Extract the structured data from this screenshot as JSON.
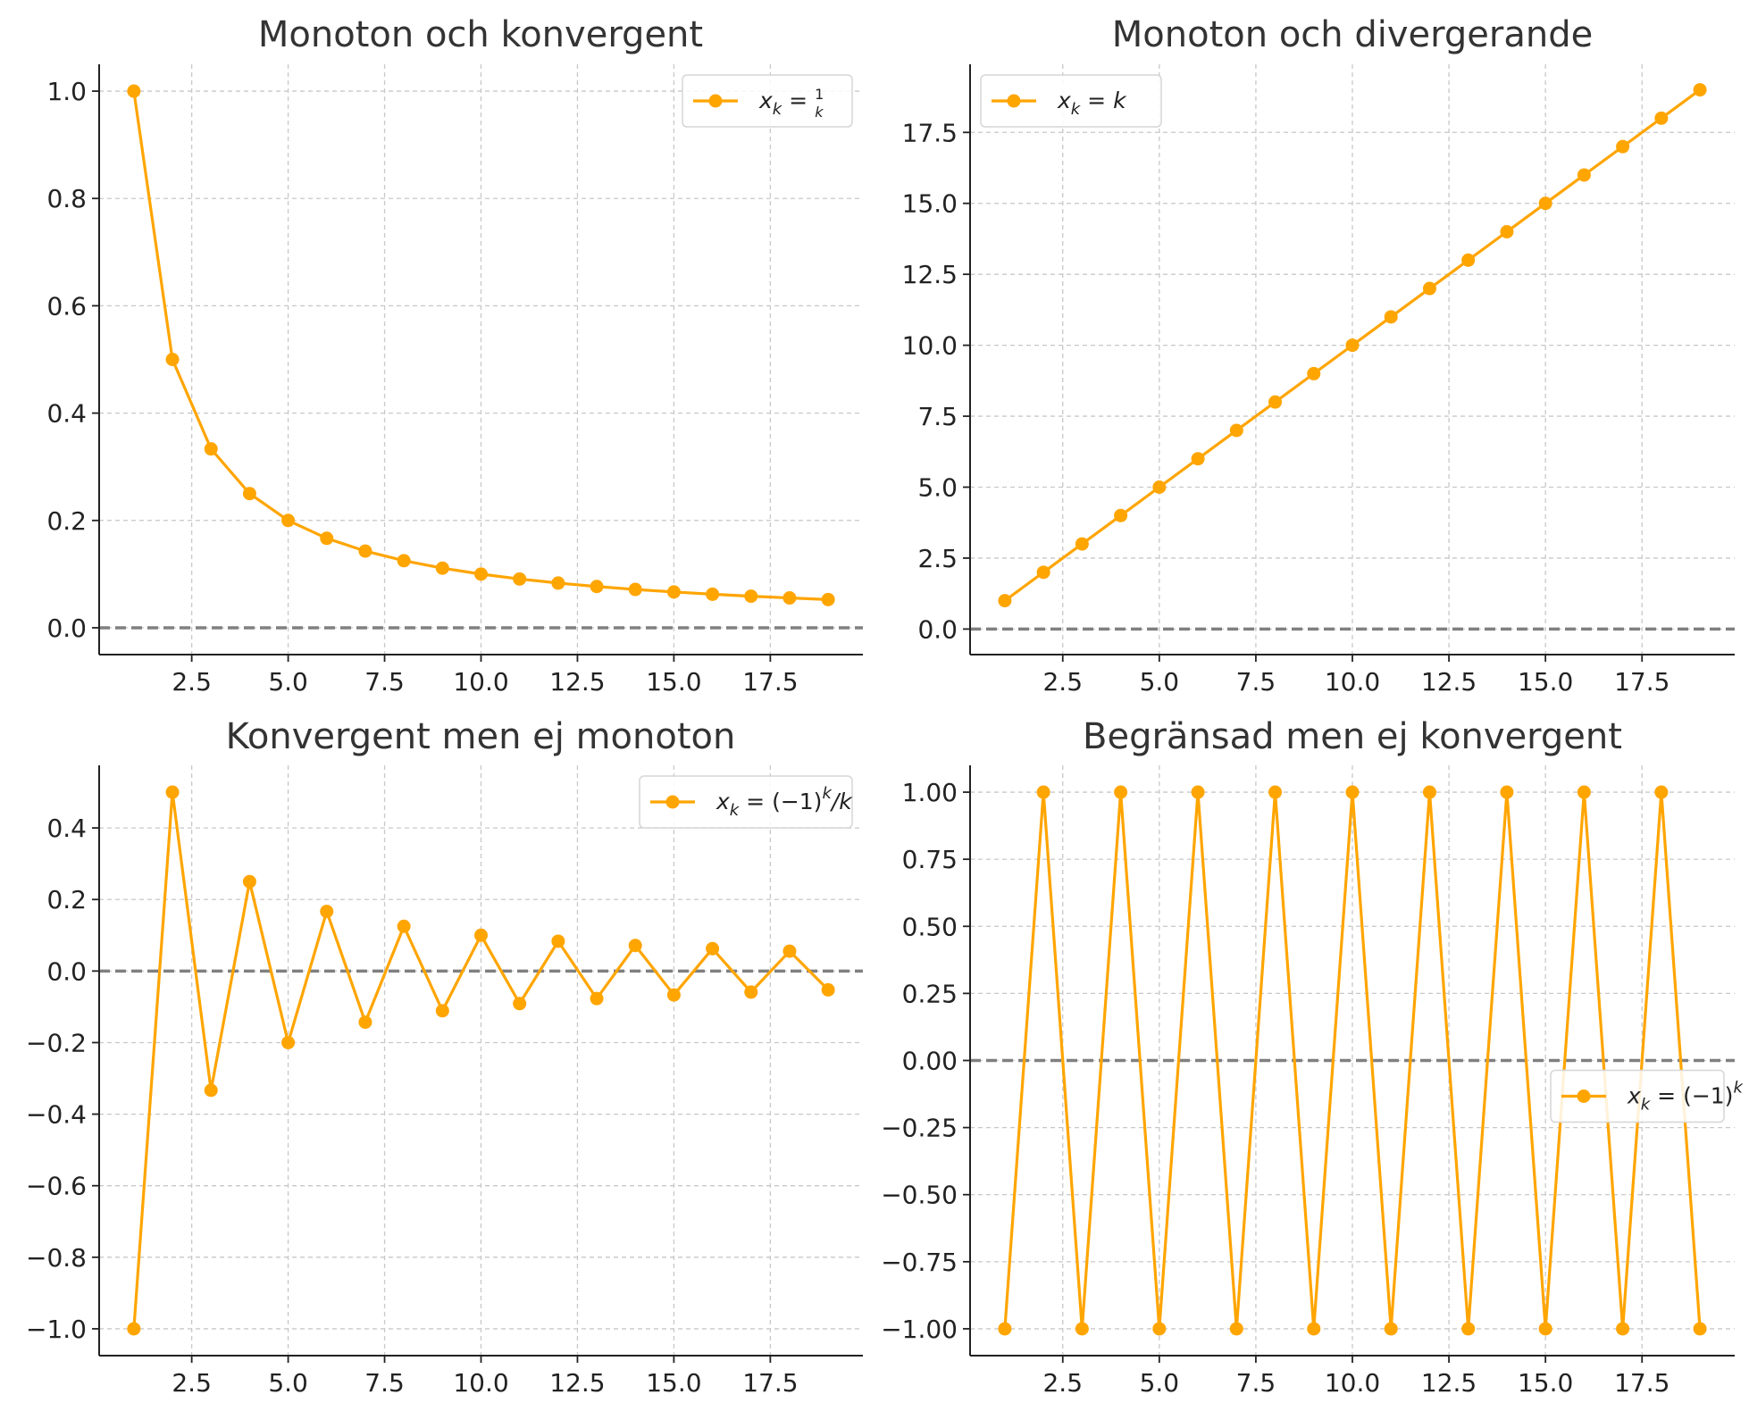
{
  "chart_data": [
    {
      "type": "line",
      "title": "Monoton och konvergent",
      "xlabel": "",
      "ylabel": "",
      "x": [
        1,
        2,
        3,
        4,
        5,
        6,
        7,
        8,
        9,
        10,
        11,
        12,
        13,
        14,
        15,
        16,
        17,
        18,
        19
      ],
      "series": [
        {
          "name": "x_k = 1/k",
          "legend": {
            "base": "x",
            "sub": "k",
            "rest": " = ",
            "frac": [
              "1",
              "k"
            ]
          },
          "values": [
            1.0,
            0.5,
            0.3333,
            0.25,
            0.2,
            0.1667,
            0.1429,
            0.125,
            0.1111,
            0.1,
            0.0909,
            0.0833,
            0.0769,
            0.0714,
            0.0667,
            0.0625,
            0.0588,
            0.0556,
            0.0526
          ]
        }
      ],
      "xlim": [
        0.1,
        19.9
      ],
      "ylim": [
        -0.05,
        1.05
      ],
      "xticks": [
        2.5,
        5.0,
        7.5,
        10.0,
        12.5,
        15.0,
        17.5
      ],
      "xtick_labels": [
        "2.5",
        "5.0",
        "7.5",
        "10.0",
        "12.5",
        "15.0",
        "17.5"
      ],
      "yticks": [
        0.0,
        0.2,
        0.4,
        0.6,
        0.8,
        1.0
      ],
      "ytick_labels": [
        "0.0",
        "0.2",
        "0.4",
        "0.6",
        "0.8",
        "1.0"
      ],
      "hline": 0,
      "grid": true,
      "legend_position": "upper-right",
      "color": "#FFA500"
    },
    {
      "type": "line",
      "title": "Monoton och divergerande",
      "xlabel": "",
      "ylabel": "",
      "x": [
        1,
        2,
        3,
        4,
        5,
        6,
        7,
        8,
        9,
        10,
        11,
        12,
        13,
        14,
        15,
        16,
        17,
        18,
        19
      ],
      "series": [
        {
          "name": "x_k = k",
          "legend": {
            "base": "x",
            "sub": "k",
            "rest": " = ",
            "tail": "k"
          },
          "values": [
            1,
            2,
            3,
            4,
            5,
            6,
            7,
            8,
            9,
            10,
            11,
            12,
            13,
            14,
            15,
            16,
            17,
            18,
            19
          ]
        }
      ],
      "xlim": [
        0.1,
        19.9
      ],
      "ylim": [
        -0.9,
        19.9
      ],
      "xticks": [
        2.5,
        5.0,
        7.5,
        10.0,
        12.5,
        15.0,
        17.5
      ],
      "xtick_labels": [
        "2.5",
        "5.0",
        "7.5",
        "10.0",
        "12.5",
        "15.0",
        "17.5"
      ],
      "yticks": [
        0.0,
        2.5,
        5.0,
        7.5,
        10.0,
        12.5,
        15.0,
        17.5
      ],
      "ytick_labels": [
        "0.0",
        "2.5",
        "5.0",
        "7.5",
        "10.0",
        "12.5",
        "15.0",
        "17.5"
      ],
      "hline": 0,
      "grid": true,
      "legend_position": "upper-left",
      "color": "#FFA500"
    },
    {
      "type": "line",
      "title": "Konvergent men ej monoton",
      "xlabel": "",
      "ylabel": "",
      "x": [
        1,
        2,
        3,
        4,
        5,
        6,
        7,
        8,
        9,
        10,
        11,
        12,
        13,
        14,
        15,
        16,
        17,
        18,
        19
      ],
      "series": [
        {
          "name": "x_k = (−1)^k/k",
          "legend": {
            "base": "x",
            "sub": "k",
            "rest": " = (−1)",
            "sup": "k",
            "tail": "/k"
          },
          "values": [
            -1.0,
            0.5,
            -0.3333,
            0.25,
            -0.2,
            0.1667,
            -0.1429,
            0.125,
            -0.1111,
            0.1,
            -0.0909,
            0.0833,
            -0.0769,
            0.0714,
            -0.0667,
            0.0625,
            -0.0588,
            0.0556,
            -0.0526
          ]
        }
      ],
      "xlim": [
        0.1,
        19.9
      ],
      "ylim": [
        -1.075,
        0.575
      ],
      "xticks": [
        2.5,
        5.0,
        7.5,
        10.0,
        12.5,
        15.0,
        17.5
      ],
      "xtick_labels": [
        "2.5",
        "5.0",
        "7.5",
        "10.0",
        "12.5",
        "15.0",
        "17.5"
      ],
      "yticks": [
        -1.0,
        -0.8,
        -0.6,
        -0.4,
        -0.2,
        0.0,
        0.2,
        0.4
      ],
      "ytick_labels": [
        "−1.0",
        "−0.8",
        "−0.6",
        "−0.4",
        "−0.2",
        "0.0",
        "0.2",
        "0.4"
      ],
      "hline": 0,
      "grid": true,
      "legend_position": "upper-right",
      "color": "#FFA500"
    },
    {
      "type": "line",
      "title": "Begränsad men ej konvergent",
      "xlabel": "",
      "ylabel": "",
      "x": [
        1,
        2,
        3,
        4,
        5,
        6,
        7,
        8,
        9,
        10,
        11,
        12,
        13,
        14,
        15,
        16,
        17,
        18,
        19
      ],
      "series": [
        {
          "name": "x_k = (−1)^k",
          "legend": {
            "base": "x",
            "sub": "k",
            "rest": " = (−1)",
            "sup": "k"
          },
          "values": [
            -1,
            1,
            -1,
            1,
            -1,
            1,
            -1,
            1,
            -1,
            1,
            -1,
            1,
            -1,
            1,
            -1,
            1,
            -1,
            1,
            -1
          ]
        }
      ],
      "xlim": [
        0.1,
        19.9
      ],
      "ylim": [
        -1.1,
        1.1
      ],
      "xticks": [
        2.5,
        5.0,
        7.5,
        10.0,
        12.5,
        15.0,
        17.5
      ],
      "xtick_labels": [
        "2.5",
        "5.0",
        "7.5",
        "10.0",
        "12.5",
        "15.0",
        "17.5"
      ],
      "yticks": [
        -1.0,
        -0.75,
        -0.5,
        -0.25,
        0.0,
        0.25,
        0.5,
        0.75,
        1.0
      ],
      "ytick_labels": [
        "−1.00",
        "−0.75",
        "−0.50",
        "−0.25",
        "0.00",
        "0.25",
        "0.50",
        "0.75",
        "1.00"
      ],
      "hline": 0,
      "grid": true,
      "legend_position": "center-right",
      "color": "#FFA500"
    }
  ]
}
